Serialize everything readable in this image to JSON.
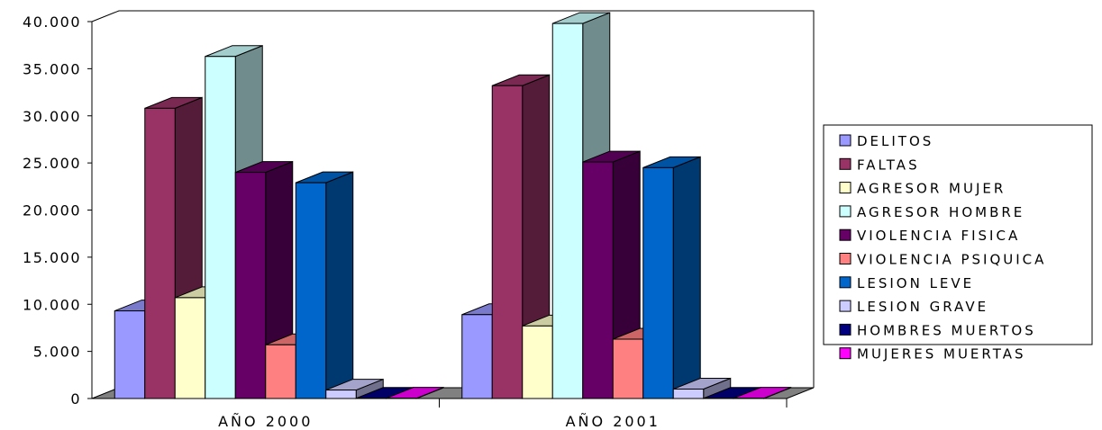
{
  "chart_data": {
    "type": "bar",
    "title": "",
    "xlabel": "",
    "ylabel": "",
    "ylim": [
      0,
      40000
    ],
    "yticks": [
      "0",
      "5.000",
      "10.000",
      "15.000",
      "20.000",
      "25.000",
      "30.000",
      "35.000",
      "40.000"
    ],
    "categories": [
      "AÑO 2000",
      "AÑO 2001"
    ],
    "legend_position": "right",
    "grid": false,
    "three_d": true,
    "series": [
      {
        "name": "DELITOS",
        "color": "#9999FF",
        "values": [
          9300,
          8900
        ]
      },
      {
        "name": "FALTAS",
        "color": "#993366",
        "values": [
          30800,
          33200
        ]
      },
      {
        "name": "AGRESOR MUJER",
        "color": "#FFFFCC",
        "values": [
          10700,
          7700
        ]
      },
      {
        "name": "AGRESOR HOMBRE",
        "color": "#CCFFFF",
        "values": [
          36300,
          39800
        ]
      },
      {
        "name": "VIOLENCIA FISICA",
        "color": "#660066",
        "values": [
          24000,
          25100
        ]
      },
      {
        "name": "VIOLENCIA PSIQUICA",
        "color": "#FF8080",
        "values": [
          5700,
          6300
        ]
      },
      {
        "name": "LESION LEVE",
        "color": "#0066CC",
        "values": [
          22900,
          24500
        ]
      },
      {
        "name": "LESION GRAVE",
        "color": "#CCCCFF",
        "values": [
          900,
          1000
        ]
      },
      {
        "name": "HOMBRES MUERTOS",
        "color": "#000080",
        "values": [
          20,
          20
        ]
      },
      {
        "name": "MUJERES MUERTAS",
        "color": "#FF00FF",
        "values": [
          30,
          30
        ]
      }
    ]
  }
}
